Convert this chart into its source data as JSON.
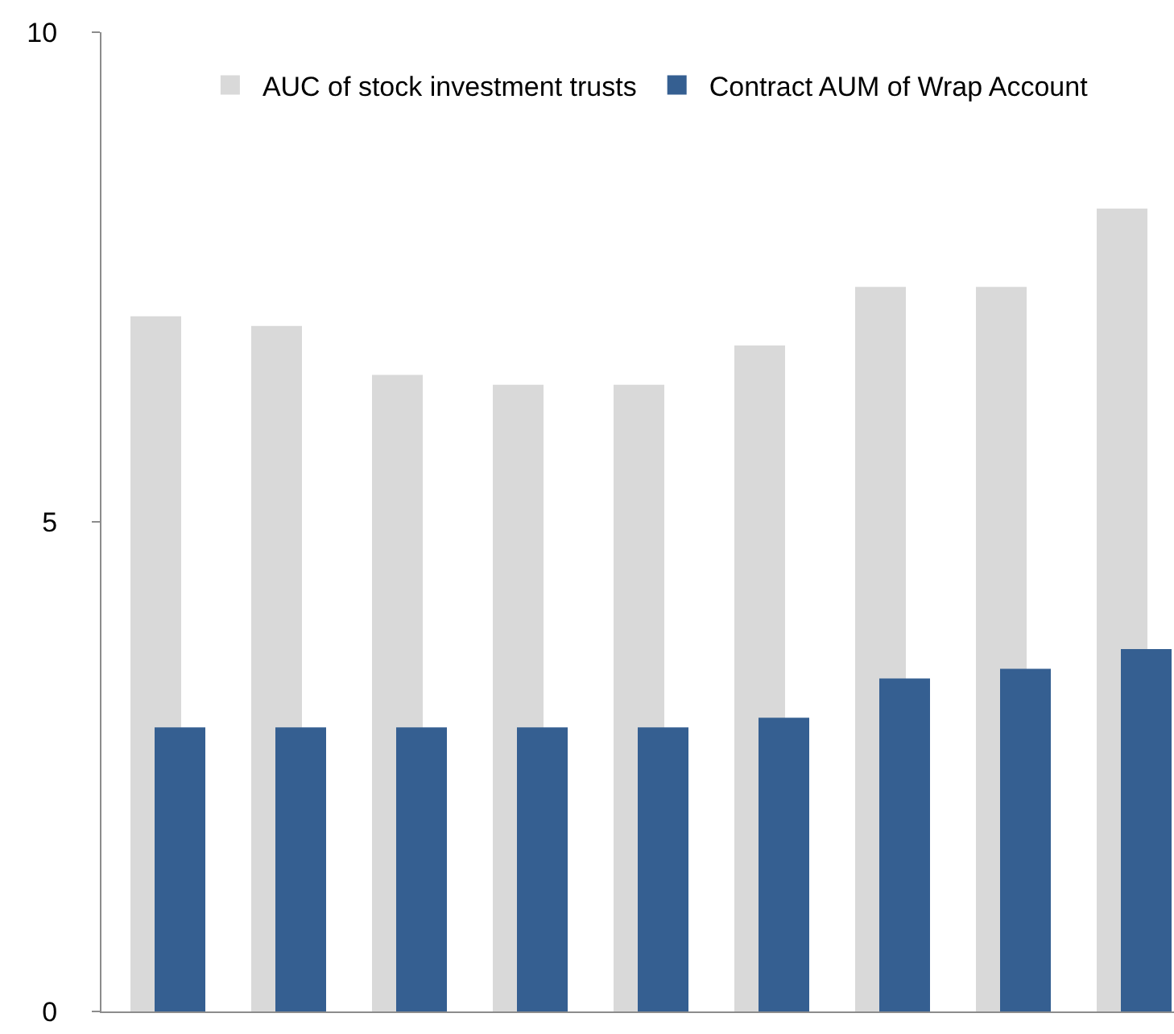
{
  "chart_data": {
    "type": "bar",
    "categories": [
      null,
      null,
      null,
      null,
      null,
      null,
      null,
      null,
      null
    ],
    "series": [
      {
        "name": "AUC of stock investment trusts",
        "color": "#d9d9d9",
        "values": [
          7.1,
          7.0,
          6.5,
          6.4,
          6.4,
          6.8,
          7.4,
          7.4,
          8.2
        ]
      },
      {
        "name": "Contract AUM of Wrap Account",
        "color": "#355f91",
        "values": [
          2.9,
          2.9,
          2.9,
          2.9,
          2.9,
          3.0,
          3.4,
          3.5,
          3.7
        ]
      }
    ],
    "ylim": [
      0,
      10
    ],
    "yticks": [
      0,
      5,
      10
    ],
    "grid": false,
    "legend": "top",
    "tick_labels": "y"
  }
}
